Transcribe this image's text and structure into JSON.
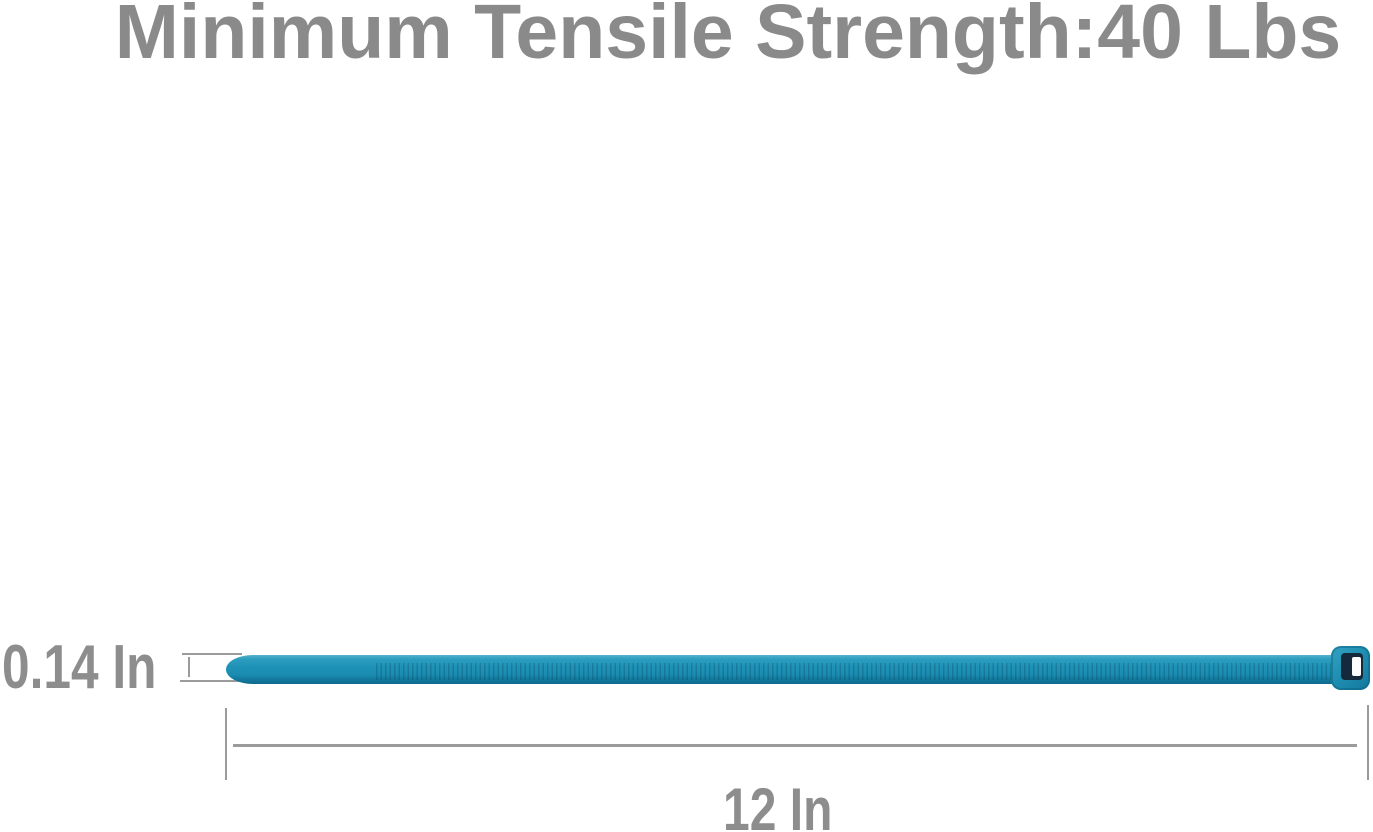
{
  "header": {
    "title": "Minimum Tensile Strength:40 Lbs"
  },
  "diagram": {
    "graphic": "cable-zip-tie",
    "width_label": "0.14 In",
    "length_label": "12 In"
  },
  "colors": {
    "background": "#ffffff",
    "annotation_text_gray": "#8d8d8d",
    "title_gray": "#8a8a8a",
    "measurement_line_gray": "#9b9b9b",
    "tie_teal": "#1f93b7",
    "tie_teal_light": "#55b2cd",
    "tie_teal_dark": "#0d6a8c",
    "tie_head_slot_dark": "#15293c",
    "tie_head_slot_opening": "#fdfdfd"
  }
}
